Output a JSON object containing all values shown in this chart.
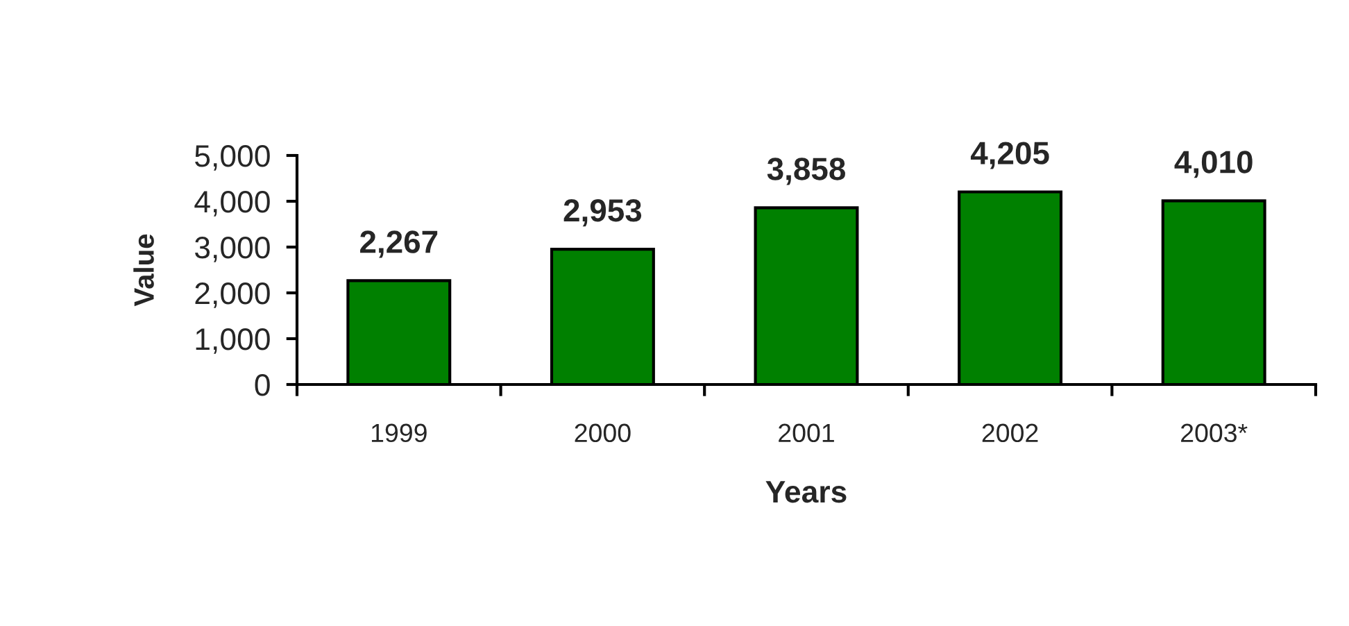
{
  "chart_data": {
    "type": "bar",
    "xlabel": "Years",
    "ylabel": "Value",
    "categories": [
      "1999",
      "2000",
      "2001",
      "2002",
      "2003*"
    ],
    "values": [
      2267,
      2953,
      3858,
      4205,
      4010
    ],
    "value_labels": [
      "2,267",
      "2,953",
      "3,858",
      "4,205",
      "4,010"
    ],
    "color": "#008000",
    "ylim": [
      0,
      5000
    ],
    "yticks": [
      {
        "value": 0,
        "label": "0"
      },
      {
        "value": 1000,
        "label": "1,000"
      },
      {
        "value": 2000,
        "label": "2,000"
      },
      {
        "value": 3000,
        "label": "3,000"
      },
      {
        "value": 4000,
        "label": "4,000"
      },
      {
        "value": 5000,
        "label": "5,000"
      }
    ],
    "grid": false
  }
}
